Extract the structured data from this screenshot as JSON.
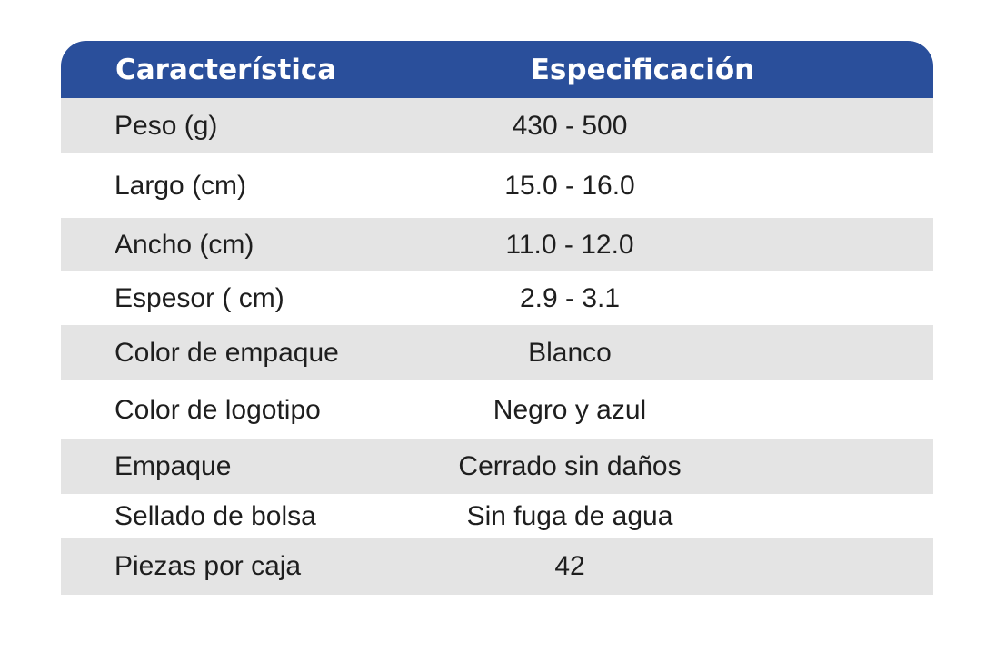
{
  "header": {
    "col1": "Característica",
    "col2": "Especificación"
  },
  "rows": [
    {
      "label": "Peso (g)",
      "value": "430 - 500"
    },
    {
      "label": "Largo (cm)",
      "value": "15.0 - 16.0"
    },
    {
      "label": "Ancho (cm)",
      "value": "11.0 - 12.0"
    },
    {
      "label": "Espesor ( cm)",
      "value": "2.9 - 3.1"
    },
    {
      "label": "Color de empaque",
      "value": "Blanco"
    },
    {
      "label": "Color de logotipo",
      "value": "Negro y azul"
    },
    {
      "label": "Empaque",
      "value": "Cerrado sin daños"
    },
    {
      "label": "Sellado de bolsa",
      "value": "Sin fuga de agua"
    },
    {
      "label": "Piezas por caja",
      "value": "42"
    }
  ],
  "colors": {
    "header_bg": "#2a4f9b",
    "row_gray": "#e4e4e4",
    "row_white": "#ffffff"
  }
}
